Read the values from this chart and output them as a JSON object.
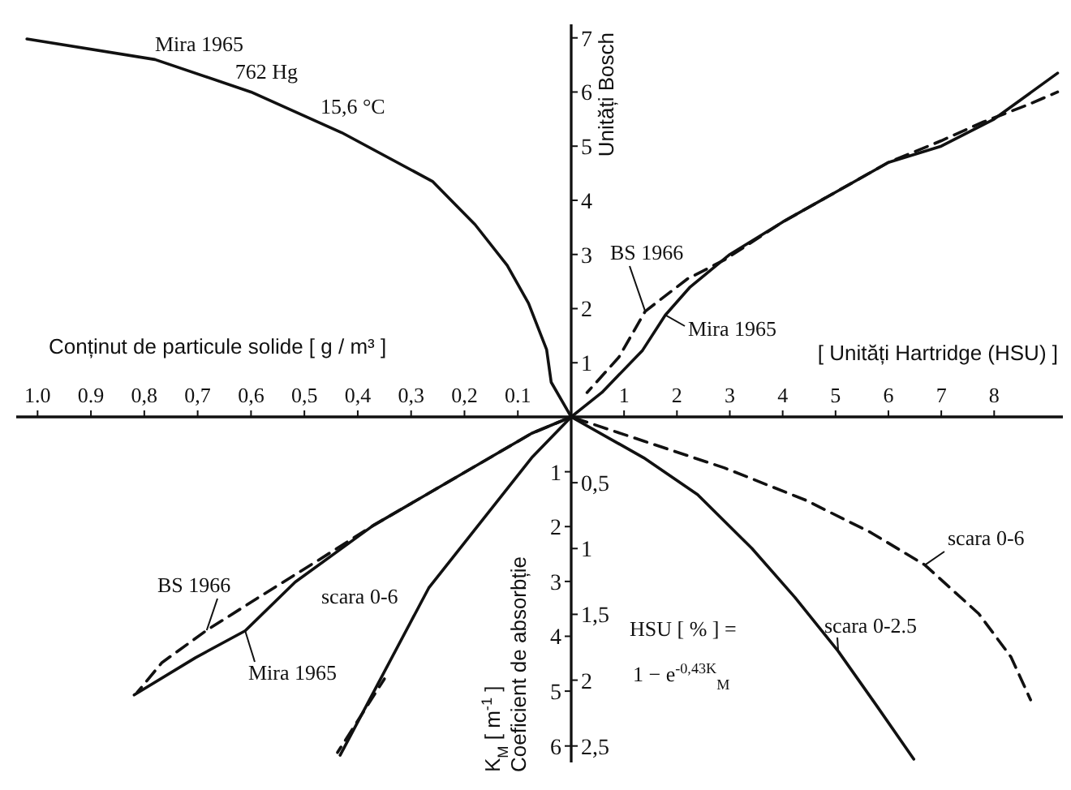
{
  "chart_data": [
    {
      "type": "line",
      "xlabel": "Conținut de particule solide [ g / m³ ]",
      "xlim": [
        1.04,
        0
      ],
      "xticks": [
        {
          "value": 1.0,
          "label": "1.0"
        },
        {
          "value": 0.9,
          "label": "0.9"
        },
        {
          "value": 0.8,
          "label": "0,8"
        },
        {
          "value": 0.7,
          "label": "0,7"
        },
        {
          "value": 0.6,
          "label": "0,6"
        },
        {
          "value": 0.5,
          "label": "0,5"
        },
        {
          "value": 0.4,
          "label": "0,4"
        },
        {
          "value": 0.3,
          "label": "0,3"
        },
        {
          "value": 0.2,
          "label": "0,2"
        },
        {
          "value": 0.1,
          "label": "0.1"
        }
      ],
      "ylim": [
        0,
        7.25
      ],
      "tick_labels": "x",
      "series": [
        {
          "color": "#111111",
          "line_style": "solid",
          "x": [
            1.02,
            0.78,
            0.6,
            0.43,
            0.26,
            0.18,
            0.12,
            0.08,
            0.046,
            0.0375,
            0
          ],
          "values": [
            6.98,
            6.6,
            6.0,
            5.25,
            4.35,
            3.55,
            2.8,
            2.1,
            1.24,
            0.64,
            0
          ]
        }
      ],
      "annotations": [
        {
          "text": "Mira 1965",
          "x": 0.78,
          "y": 6.6
        },
        {
          "text": "762 Hg",
          "x": 0.63,
          "y": 6.1
        },
        {
          "text": "15,6 °C",
          "x": 0.47,
          "y": 5.45
        }
      ]
    },
    {
      "type": "line",
      "xlabel": "[ Unități Hartridge (HSU) ]",
      "ylabel": "Unități Bosch",
      "xlim": [
        0,
        9.3
      ],
      "xticks": [
        1,
        2,
        3,
        4,
        5,
        6,
        7,
        8
      ],
      "ylim": [
        0,
        7.25
      ],
      "yticks": [
        1,
        2,
        3,
        4,
        5,
        6,
        7
      ],
      "series": [
        {
          "name": "BS 1966",
          "color": "#111111",
          "line_style": "dashed",
          "x": [
            0.3,
            0.9,
            1.4,
            2.2,
            2.9,
            4,
            5,
            6,
            7,
            7.8,
            8.6,
            9.2
          ],
          "values": [
            0.45,
            1.1,
            1.95,
            2.55,
            2.9,
            3.6,
            4.15,
            4.7,
            5.1,
            5.45,
            5.75,
            6.0
          ]
        },
        {
          "name": "Mira 1965",
          "color": "#111111",
          "line_style": "solid",
          "x": [
            0,
            0.58,
            1.35,
            1.78,
            2.25,
            3,
            4,
            5,
            6,
            7,
            8,
            9.2
          ],
          "values": [
            0,
            0.45,
            1.23,
            1.88,
            2.4,
            3,
            3.6,
            4.15,
            4.7,
            5.0,
            5.5,
            6.35
          ]
        }
      ]
    },
    {
      "type": "line",
      "xlim": [
        1.04,
        0
      ],
      "ylim": [
        6.3,
        0
      ],
      "y2lim": [
        2.625,
        0
      ],
      "tick_labels": false,
      "series": [
        {
          "name": "BS 1966",
          "color": "#111111",
          "line_style": "dashed",
          "x": [
            0,
            0.074,
            0.371,
            0.475,
            0.579,
            0.683,
            0.767,
            0.813
          ],
          "values": [
            0,
            0.3,
            1.98,
            2.62,
            3.25,
            3.89,
            4.48,
            5.02
          ]
        },
        {
          "name": "Mira 1965",
          "color": "#111111",
          "line_style": "solid",
          "x": [
            0,
            0.074,
            0.371,
            0.517,
            0.611,
            0.704,
            0.819
          ],
          "values": [
            0,
            0.3,
            1.98,
            3.01,
            3.9,
            4.39,
            5.07
          ]
        },
        {
          "color": "#111111",
          "line_style": "solid",
          "axis": "y2",
          "x": [
            0,
            0.074,
            0.267,
            0.433
          ],
          "values": [
            0,
            0.31,
            1.3,
            2.57
          ]
        },
        {
          "color": "#111111",
          "line_style": "dashed",
          "axis": "y2",
          "x": [
            0.35,
            0.438
          ],
          "values": [
            1.99,
            2.55
          ]
        }
      ],
      "annotations": [
        "scara 0-6"
      ]
    },
    {
      "type": "line",
      "ylabel": "K$_{M}$ [ m$^{-1}$ ]",
      "xlim": [
        0,
        9.3
      ],
      "ylim": [
        6.3,
        0
      ],
      "yticks": [
        1,
        2,
        3,
        4,
        5,
        6
      ],
      "y2lim": [
        2.625,
        0
      ],
      "y2ticks": [
        {
          "value": 0.5,
          "label": "0,5"
        },
        1,
        {
          "value": 1.5,
          "label": "1,5"
        },
        2,
        {
          "value": 2.5,
          "label": "2,5"
        }
      ],
      "tick_labels": "y",
      "series": [
        {
          "name": "scara 0-6",
          "color": "#111111",
          "line_style": "dashed",
          "x": [
            0,
            1.37,
            2.9,
            4.44,
            5.67,
            6.69,
            7.71,
            8.32,
            8.69
          ],
          "values": [
            0,
            0.44,
            0.93,
            1.52,
            2.11,
            2.7,
            3.59,
            4.38,
            5.16
          ]
        },
        {
          "name": "scara 0-2.5",
          "color": "#111111",
          "line_style": "solid",
          "axis": "y2",
          "x": [
            0,
            1.37,
            2.39,
            3.42,
            4.23,
            5.05,
            5.77,
            6.48
          ],
          "values": [
            0,
            0.31,
            0.59,
            1.0,
            1.37,
            1.78,
            2.19,
            2.6
          ]
        }
      ],
      "annotations": [
        "Coeficient de absorbție",
        "HSU [ % ] =",
        "1 − e$^{-0,43K}$$_{M}$"
      ]
    }
  ]
}
